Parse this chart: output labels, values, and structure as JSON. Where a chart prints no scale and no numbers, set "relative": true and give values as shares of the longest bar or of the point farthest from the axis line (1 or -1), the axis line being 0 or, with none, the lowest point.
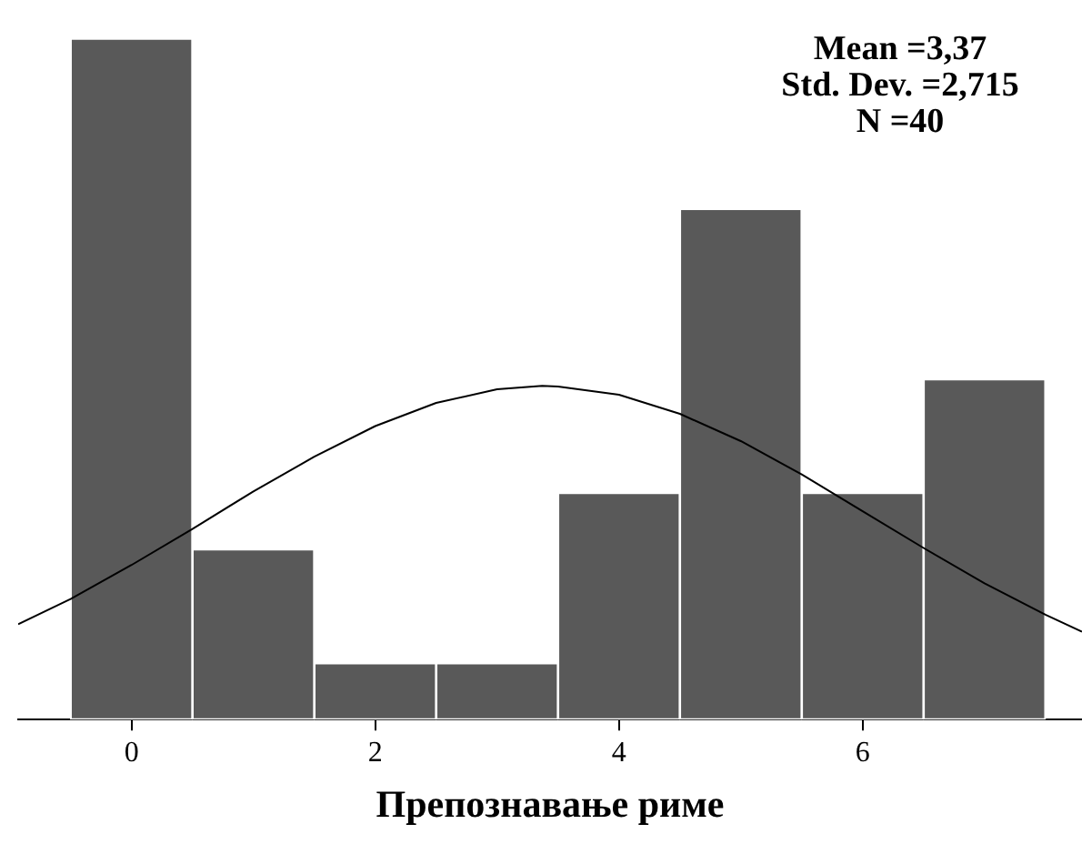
{
  "chart_data": {
    "type": "histogram",
    "xlabel": "Препознавање риме",
    "relative": true,
    "bins": [
      -0.5,
      0.5,
      1.5,
      2.5,
      3.5,
      4.5,
      5.5,
      6.5,
      7.5
    ],
    "values": [
      1,
      0.25,
      0.083,
      0.083,
      0.333,
      0.75,
      0.333,
      0.5
    ],
    "color": "#595959",
    "series": [
      {
        "type": "line",
        "color": "#000000",
        "x": [
          -0.93,
          -0.5,
          0,
          0.5,
          1,
          1.5,
          2,
          2.5,
          3,
          3.37,
          3.5,
          4,
          4.5,
          5,
          5.5,
          6,
          6.5,
          7,
          7.5,
          7.8
        ],
        "values": [
          0.14,
          0.177,
          0.227,
          0.28,
          0.335,
          0.386,
          0.431,
          0.465,
          0.485,
          0.49,
          0.489,
          0.477,
          0.449,
          0.409,
          0.36,
          0.306,
          0.252,
          0.2,
          0.154,
          0.129
        ]
      }
    ],
    "xlim": [
      -0.93,
      7.8
    ],
    "xticks": [
      0,
      2,
      4,
      6
    ],
    "annotations": [
      "Mean =3,37",
      "Std. Dev. =2,715",
      "N =40"
    ],
    "grid": false,
    "legend": false,
    "marker": "none"
  }
}
